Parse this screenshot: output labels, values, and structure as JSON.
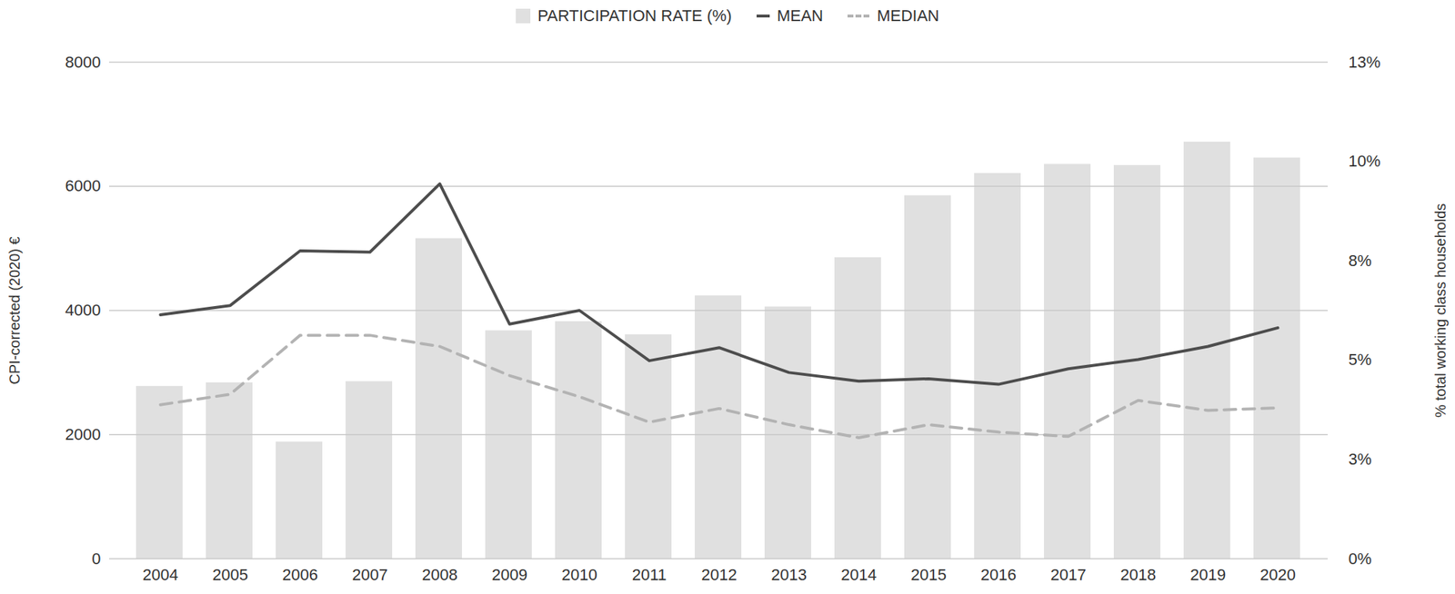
{
  "chart_data": {
    "type": "bar",
    "categories": [
      "2004",
      "2005",
      "2006",
      "2007",
      "2008",
      "2009",
      "2010",
      "2011",
      "2012",
      "2013",
      "2014",
      "2015",
      "2016",
      "2017",
      "2018",
      "2019",
      "2020"
    ],
    "y_label": "CPI-corrected (2020) €",
    "y2_label": "% total working class households",
    "ylim": [
      0,
      8000
    ],
    "yticks": [
      0,
      2000,
      4000,
      6000,
      8000
    ],
    "y2lim": [
      0,
      12.5
    ],
    "y2ticks": [
      {
        "value": 0,
        "label": "0%"
      },
      {
        "value": 2.5,
        "label": "3%"
      },
      {
        "value": 5,
        "label": "5%"
      },
      {
        "value": 7.5,
        "label": "8%"
      },
      {
        "value": 10,
        "label": "10%"
      },
      {
        "value": 12.5,
        "label": "13%"
      }
    ],
    "grid": true,
    "legend": "top",
    "series": [
      {
        "name": "PARTICIPATION RATE (%)",
        "type": "bar",
        "axis": "y2",
        "color": "#e0e0e0",
        "values": [
          4.34,
          4.43,
          2.94,
          4.46,
          8.06,
          5.74,
          5.97,
          5.64,
          6.62,
          6.34,
          7.58,
          9.14,
          9.7,
          9.93,
          9.9,
          10.49,
          10.09
        ]
      },
      {
        "name": "MEAN",
        "type": "line",
        "color": "#4d4d4d",
        "line_style": "solid",
        "values": [
          3930,
          4080,
          4960,
          4940,
          6040,
          3780,
          4000,
          3190,
          3400,
          3000,
          2860,
          2900,
          2810,
          3060,
          3210,
          3420,
          3720
        ]
      },
      {
        "name": "MEDIAN",
        "type": "line",
        "color": "#b3b3b3",
        "line_style": "dashed",
        "values": [
          2480,
          2650,
          3600,
          3600,
          3420,
          2950,
          2610,
          2200,
          2420,
          2160,
          1950,
          2160,
          2040,
          1970,
          2550,
          2390,
          2430
        ]
      }
    ]
  }
}
